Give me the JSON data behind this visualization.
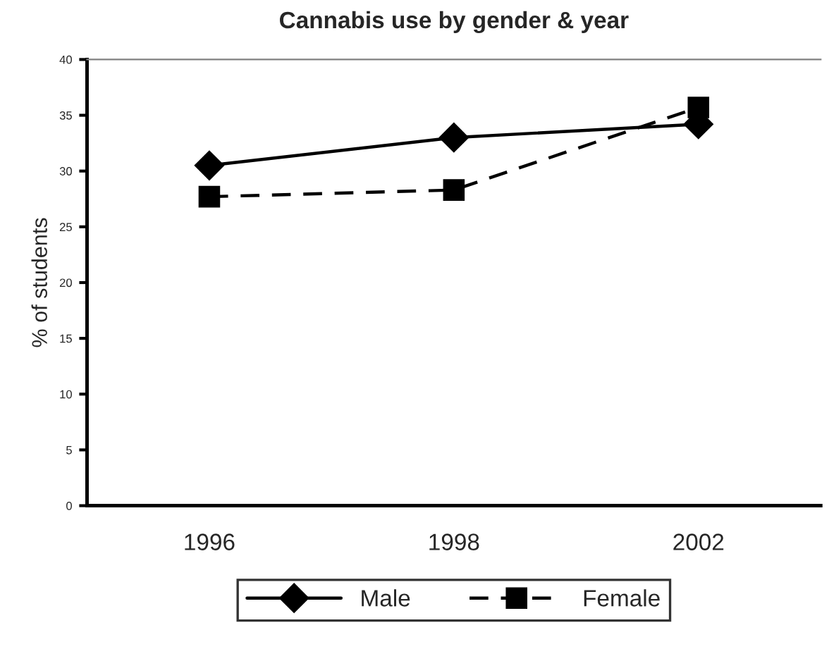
{
  "chart_data": {
    "type": "line",
    "title": "Cannabis use by gender & year",
    "ylabel": "% of students",
    "categories": [
      "1996",
      "1998",
      "2002"
    ],
    "series": [
      {
        "name": "Male",
        "color": "#000000",
        "values": [
          30.5,
          33.0,
          34.2
        ],
        "marker": "diamond",
        "line_style": "solid"
      },
      {
        "name": "Female",
        "color": "#000000",
        "values": [
          27.7,
          28.3,
          35.7
        ],
        "marker": "square",
        "line_style": "dashed"
      }
    ],
    "ylim": [
      0,
      40
    ],
    "yticks": [
      0,
      5,
      10,
      15,
      20,
      25,
      30,
      35,
      40
    ],
    "grid": false,
    "legend": "bottom"
  }
}
